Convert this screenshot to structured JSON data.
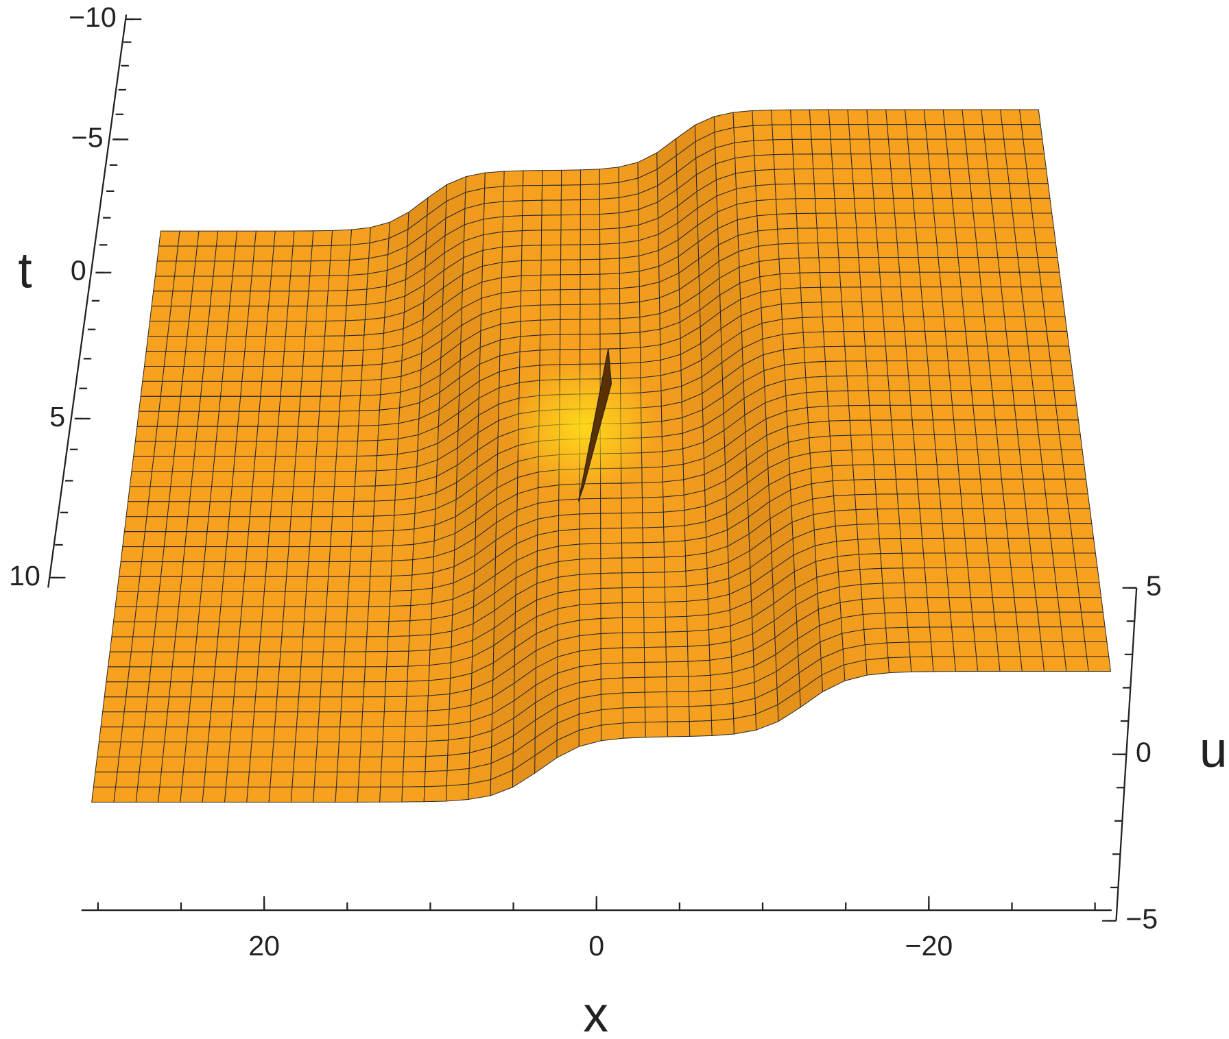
{
  "chart_data": {
    "type": "surface3d",
    "x_label": "x",
    "y_label": "t",
    "z_label": "u",
    "xlim": [
      31,
      -31
    ],
    "xticks": [
      20,
      0,
      {
        "value": -20,
        "label": "−20"
      }
    ],
    "ylim": [
      -10.2,
      10.3
    ],
    "yticks": [
      {
        "value": -10,
        "label": "−10"
      },
      {
        "value": -5,
        "label": "−5"
      },
      0,
      5,
      10
    ],
    "zlim": [
      -5,
      5
    ],
    "zticks": [
      5,
      0,
      {
        "value": -5,
        "label": "−5"
      }
    ],
    "color": "#f7a11f"
  }
}
